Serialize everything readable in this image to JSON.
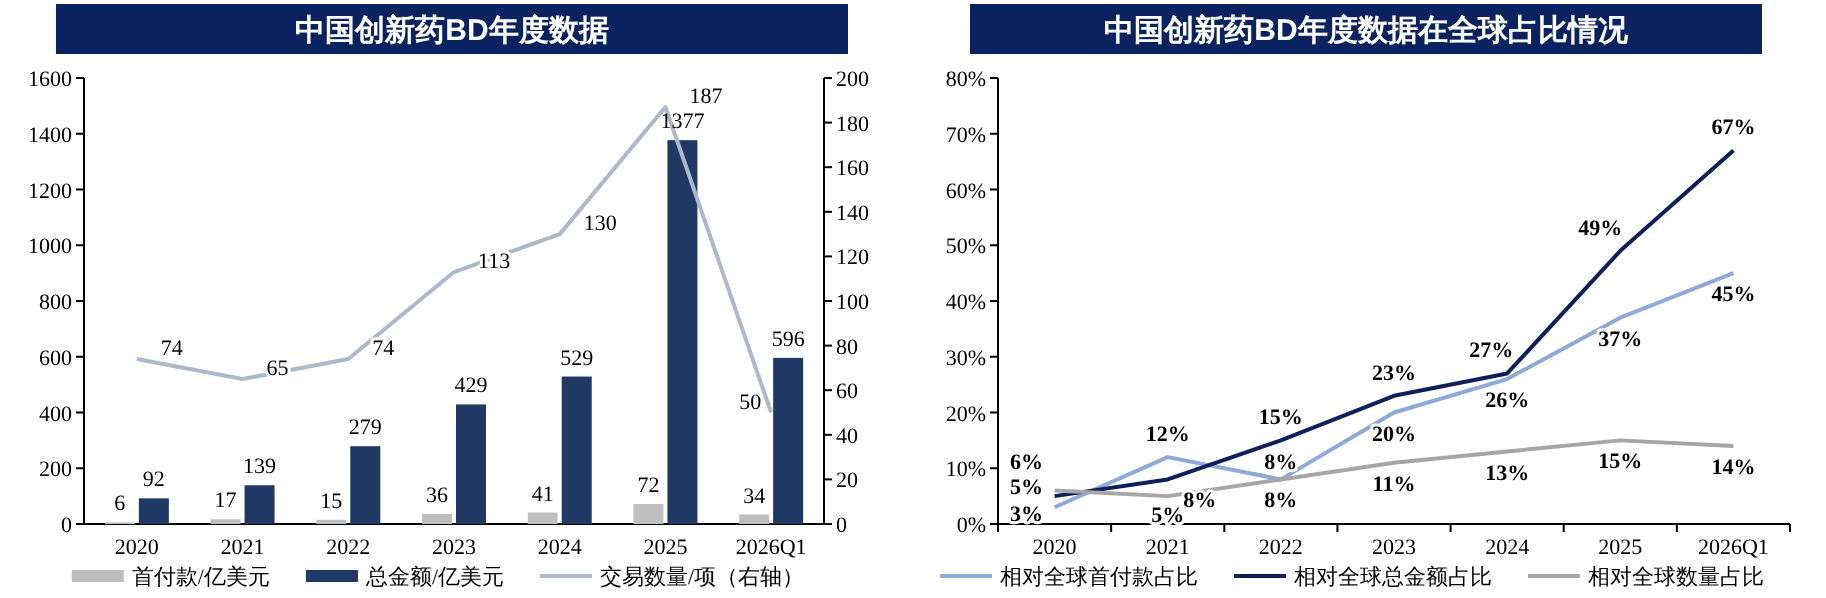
{
  "chart_data": [
    {
      "type": "bar",
      "title": "中国创新药BD年度数据",
      "categories": [
        "2020",
        "2021",
        "2022",
        "2023",
        "2024",
        "2025",
        "2026Q1"
      ],
      "series": [
        {
          "name": "首付款/亿美元",
          "color": "#bfbfbf",
          "values": [
            6,
            17,
            15,
            36,
            41,
            72,
            34
          ]
        },
        {
          "name": "总金额/亿美元",
          "color": "#1f3864",
          "values": [
            92,
            139,
            279,
            429,
            529,
            1377,
            596
          ]
        },
        {
          "name": "交易数量/项（右轴）",
          "type": "line",
          "axis": "y2",
          "color": "#adb9ca",
          "values": [
            74,
            65,
            74,
            113,
            130,
            187,
            50
          ]
        }
      ],
      "ylim": [
        0,
        1600
      ],
      "yticks": [
        0,
        200,
        400,
        600,
        800,
        1000,
        1200,
        1400,
        1600
      ],
      "y2lim": [
        0,
        200
      ],
      "y2ticks": [
        0,
        20,
        40,
        60,
        80,
        100,
        120,
        140,
        160,
        180,
        200
      ],
      "data_labels": true,
      "legend": "bottom",
      "grid": false
    },
    {
      "type": "line",
      "title": "中国创新药BD年度数据在全球占比情况",
      "categories": [
        "2020",
        "2021",
        "2022",
        "2023",
        "2024",
        "2025",
        "2026Q1"
      ],
      "series": [
        {
          "name": "相对全球首付款占比",
          "color": "#8eaadb",
          "values": [
            3,
            12,
            8,
            20,
            26,
            37,
            45
          ],
          "value_labels": [
            "3%",
            "12%",
            "8%",
            "20%",
            "26%",
            "37%",
            "45%"
          ]
        },
        {
          "name": "相对全球总金额占比",
          "color": "#0f1f5c",
          "values": [
            5,
            8,
            15,
            23,
            27,
            49,
            67
          ],
          "value_labels": [
            "5%",
            "8%",
            "15%",
            "23%",
            "27%",
            "49%",
            "67%"
          ]
        },
        {
          "name": "相对全球数量占比",
          "color": "#a6a6a6",
          "values": [
            6,
            5,
            8,
            11,
            13,
            15,
            14
          ],
          "value_labels": [
            "6%",
            "5%",
            "8%",
            "11%",
            "13%",
            "15%",
            "14%"
          ]
        }
      ],
      "ylim": [
        0,
        80
      ],
      "yticks": [
        {
          "value": 0,
          "label": "0%"
        },
        {
          "value": 10,
          "label": "10%"
        },
        {
          "value": 20,
          "label": "20%"
        },
        {
          "value": 30,
          "label": "30%"
        },
        {
          "value": 40,
          "label": "40%"
        },
        {
          "value": 50,
          "label": "50%"
        },
        {
          "value": 60,
          "label": "60%"
        },
        {
          "value": 70,
          "label": "70%"
        },
        {
          "value": 80,
          "label": "80%"
        }
      ],
      "legend": "bottom",
      "grid": false
    }
  ]
}
